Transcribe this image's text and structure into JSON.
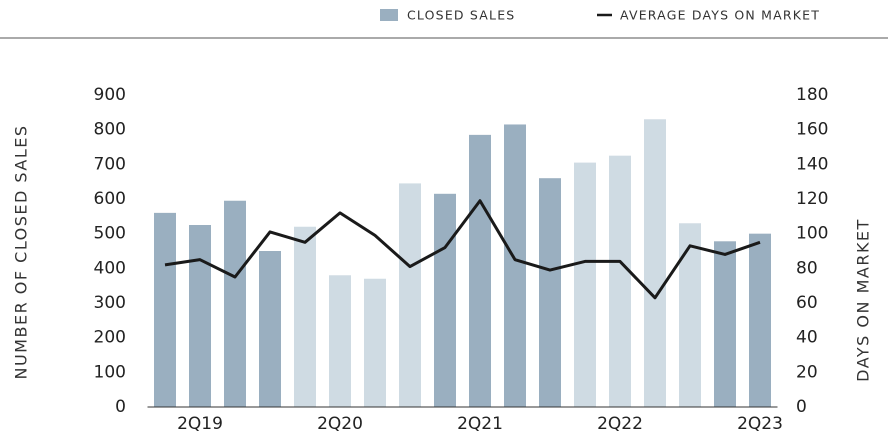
{
  "chart_data": {
    "type": "bar_line",
    "categories": [
      null,
      "2Q19",
      null,
      null,
      null,
      "2Q20",
      null,
      null,
      null,
      "2Q21",
      null,
      null,
      null,
      "2Q22",
      null,
      null,
      null,
      "2Q23"
    ],
    "y_label": "NUMBER OF CLOSED SALES",
    "y2_label": "DAYS ON MARKET",
    "series": [
      {
        "name": "CLOSED SALES",
        "color": "#9aafc0",
        "colors": [
          "#9aafc0",
          "#9aafc0",
          "#9aafc0",
          "#9aafc0",
          "#cfdbe3",
          "#cfdbe3",
          "#cfdbe3",
          "#cfdbe3",
          "#9aafc0",
          "#9aafc0",
          "#9aafc0",
          "#9aafc0",
          "#cfdbe3",
          "#cfdbe3",
          "#cfdbe3",
          "#cfdbe3",
          "#9aafc0",
          "#9aafc0"
        ],
        "values": [
          560,
          525,
          595,
          450,
          520,
          380,
          370,
          645,
          615,
          785,
          815,
          660,
          705,
          725,
          830,
          530,
          478,
          500
        ]
      },
      {
        "name": "AVERAGE DAYS ON MARKET",
        "color": "#1a1a1a",
        "axis": "y2",
        "values": [
          82,
          85,
          75,
          101,
          95,
          112,
          99,
          81,
          92,
          119,
          85,
          79,
          84,
          84,
          63,
          93,
          88,
          95
        ]
      }
    ],
    "ylim": [
      0,
      900
    ],
    "yticks": [
      0,
      100,
      200,
      300,
      400,
      500,
      600,
      700,
      800,
      900
    ],
    "y2lim": [
      0,
      180
    ],
    "y2ticks": [
      0,
      20,
      40,
      60,
      80,
      100,
      120,
      140,
      160,
      180
    ]
  }
}
